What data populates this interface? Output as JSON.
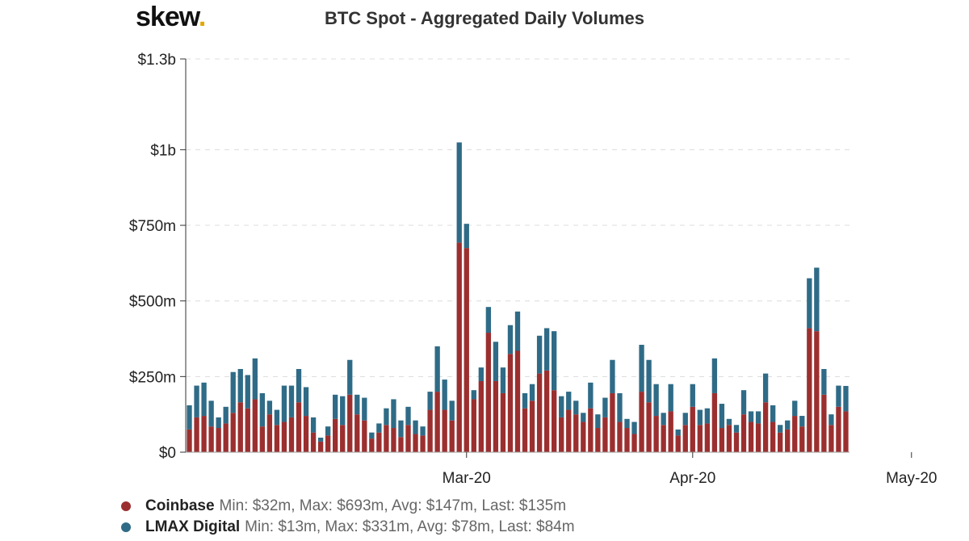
{
  "brand": {
    "name": "skew",
    "dot": "."
  },
  "chart_data": {
    "type": "bar",
    "stacked": true,
    "title": "BTC Spot - Aggregated Daily Volumes",
    "ylabel": "",
    "xlabel": "",
    "ylim": [
      0,
      1.3
    ],
    "y_ticks": [
      {
        "value": 0,
        "label": "$0"
      },
      {
        "value": 0.25,
        "label": "$250m"
      },
      {
        "value": 0.5,
        "label": "$500m"
      },
      {
        "value": 0.75,
        "label": "$750m"
      },
      {
        "value": 1.0,
        "label": "$1b"
      },
      {
        "value": 1.3,
        "label": "$1.3b"
      }
    ],
    "x_ticks": [
      {
        "index": 38,
        "label": "Mar-20"
      },
      {
        "index": 69,
        "label": "Apr-20"
      },
      {
        "index": 99,
        "label": "May-20"
      }
    ],
    "grid": true,
    "legend_position": "bottom-left",
    "series": [
      {
        "name": "Coinbase",
        "color": "#9b2f2f",
        "stats": "Min: $32m, Max: $693m, Avg: $147m, Last: $135m",
        "values": [
          0.075,
          0.115,
          0.12,
          0.085,
          0.08,
          0.095,
          0.13,
          0.165,
          0.145,
          0.175,
          0.085,
          0.125,
          0.09,
          0.1,
          0.115,
          0.165,
          0.12,
          0.065,
          0.035,
          0.055,
          0.11,
          0.09,
          0.19,
          0.125,
          0.105,
          0.045,
          0.065,
          0.09,
          0.08,
          0.05,
          0.09,
          0.06,
          0.055,
          0.14,
          0.2,
          0.14,
          0.105,
          0.693,
          0.675,
          0.175,
          0.235,
          0.395,
          0.235,
          0.195,
          0.325,
          0.335,
          0.145,
          0.17,
          0.26,
          0.27,
          0.205,
          0.115,
          0.14,
          0.125,
          0.1,
          0.145,
          0.08,
          0.115,
          0.195,
          0.1,
          0.08,
          0.06,
          0.2,
          0.165,
          0.12,
          0.09,
          0.135,
          0.055,
          0.09,
          0.15,
          0.09,
          0.095,
          0.195,
          0.08,
          0.09,
          0.065,
          0.125,
          0.1,
          0.095,
          0.165,
          0.1,
          0.065,
          0.075,
          0.12,
          0.085,
          0.41,
          0.4,
          0.19,
          0.09,
          0.15,
          0.135
        ]
      },
      {
        "name": "LMAX Digital",
        "color": "#2f6b86",
        "stats": "Min: $13m, Max: $331m, Avg: $78m, Last: $84m",
        "values": [
          0.08,
          0.105,
          0.11,
          0.085,
          0.035,
          0.055,
          0.135,
          0.11,
          0.11,
          0.135,
          0.11,
          0.045,
          0.05,
          0.12,
          0.105,
          0.11,
          0.095,
          0.05,
          0.013,
          0.03,
          0.08,
          0.095,
          0.115,
          0.065,
          0.075,
          0.02,
          0.03,
          0.055,
          0.095,
          0.055,
          0.06,
          0.045,
          0.03,
          0.06,
          0.15,
          0.1,
          0.065,
          0.331,
          0.08,
          0.03,
          0.045,
          0.085,
          0.13,
          0.085,
          0.095,
          0.13,
          0.05,
          0.055,
          0.125,
          0.14,
          0.195,
          0.07,
          0.06,
          0.045,
          0.03,
          0.085,
          0.045,
          0.065,
          0.11,
          0.095,
          0.03,
          0.04,
          0.155,
          0.14,
          0.105,
          0.04,
          0.09,
          0.02,
          0.04,
          0.075,
          0.05,
          0.05,
          0.115,
          0.08,
          0.02,
          0.025,
          0.08,
          0.035,
          0.04,
          0.095,
          0.055,
          0.025,
          0.03,
          0.05,
          0.035,
          0.165,
          0.21,
          0.085,
          0.035,
          0.07,
          0.084
        ]
      }
    ]
  }
}
